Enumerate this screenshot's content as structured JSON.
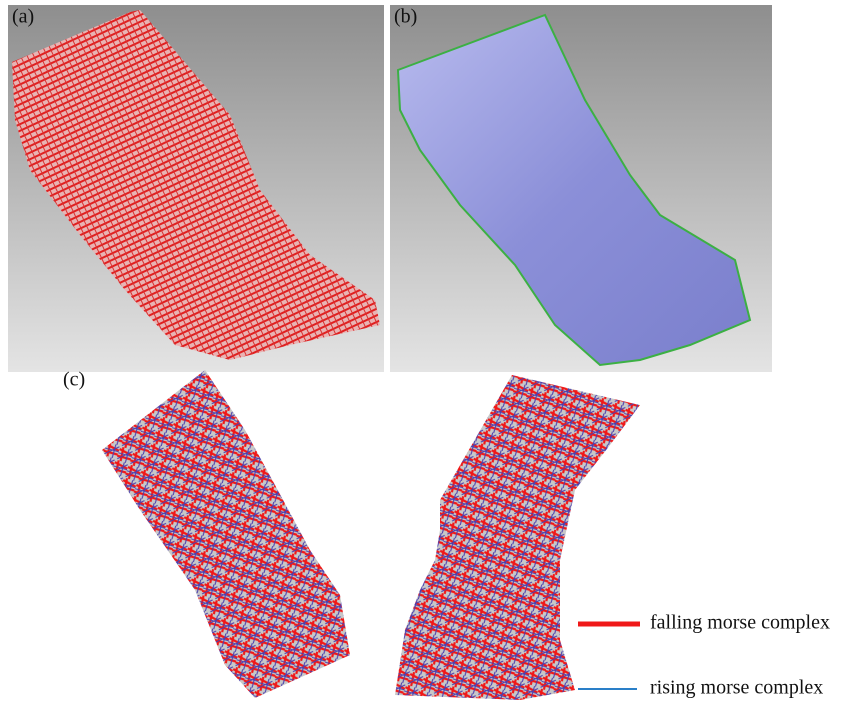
{
  "panels": [
    {
      "label": "(a)"
    },
    {
      "label": "(b)"
    },
    {
      "label": "(c)"
    }
  ],
  "legend": [
    {
      "label": "falling morse complex"
    },
    {
      "label": "rising morse complex"
    }
  ]
}
